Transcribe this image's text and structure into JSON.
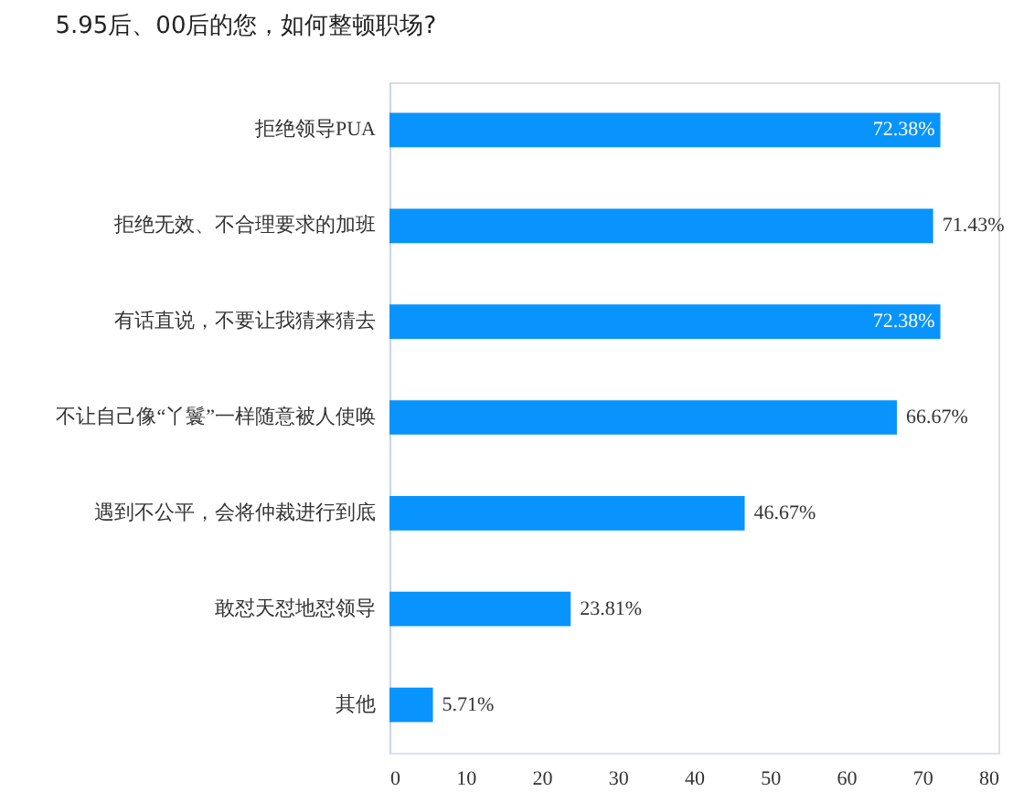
{
  "chart_data": {
    "type": "bar",
    "orientation": "horizontal",
    "title": "5.95后、00后的您，如何整顿职场?",
    "categories": [
      "拒绝领导PUA",
      "拒绝无效、不合理要求的加班",
      "有话直说，不要让我猜来猜去",
      "不让自己像“丫鬟”一样随意被人使唤",
      "遇到不公平，会将仲裁进行到底",
      "敢怼天怼地怼领导",
      "其他"
    ],
    "values": [
      72.38,
      71.43,
      72.38,
      66.67,
      46.67,
      23.81,
      5.71
    ],
    "value_labels": [
      "72.38%",
      "71.43%",
      "72.38%",
      "66.67%",
      "46.67%",
      "23.81%",
      "5.71%"
    ],
    "color": "#0894fc",
    "xlim": [
      0,
      80
    ],
    "xticks": [
      0,
      10,
      20,
      30,
      40,
      50,
      60,
      70,
      80
    ],
    "grid": false,
    "legend": false
  }
}
